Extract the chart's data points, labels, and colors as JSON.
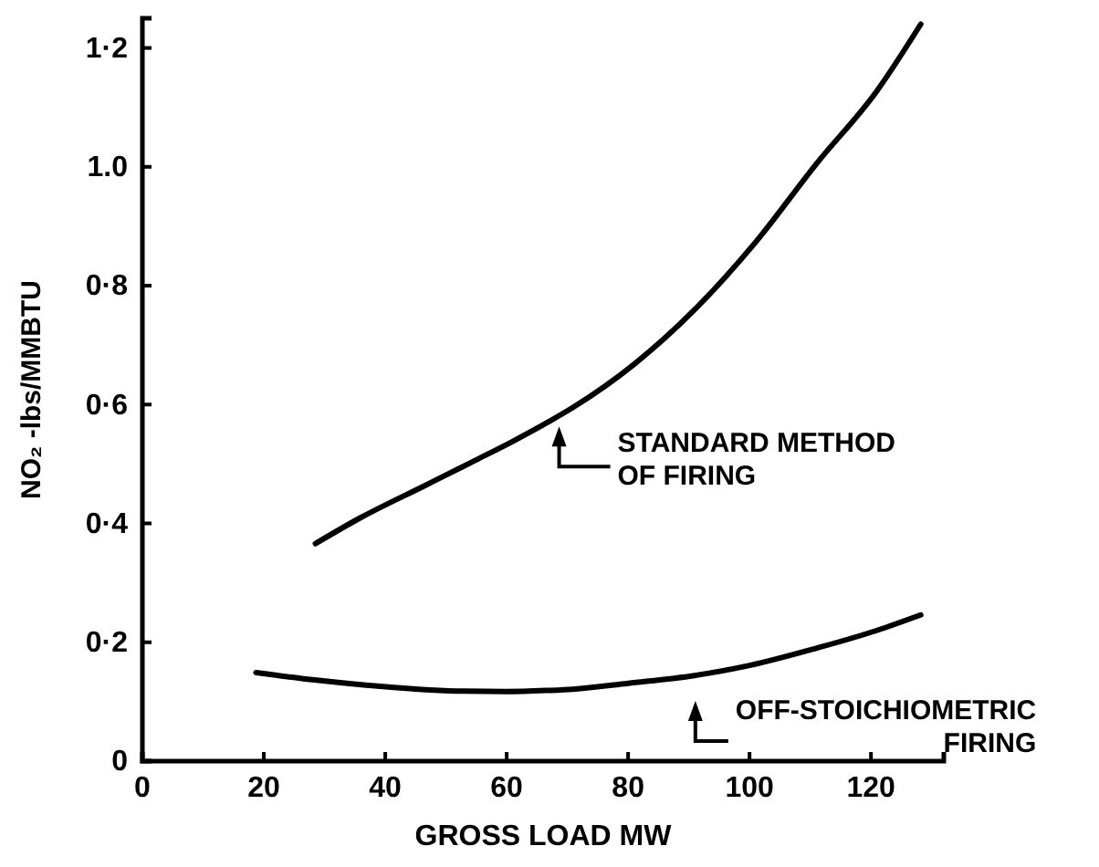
{
  "chart_data": {
    "type": "line",
    "xlabel": "GROSS LOAD MW",
    "ylabel": "NO₂ -lbs/MMBTU",
    "xlim": [
      0,
      132
    ],
    "ylim": [
      0,
      1.25
    ],
    "xticks": [
      0,
      20,
      40,
      60,
      80,
      100,
      120
    ],
    "yticks": [
      0,
      {
        "value": 0.2,
        "label": "0·2"
      },
      {
        "value": 0.4,
        "label": "0·4"
      },
      {
        "value": 0.6,
        "label": "0·6"
      },
      {
        "value": 0.8,
        "label": "0·8"
      },
      {
        "value": 1.0,
        "label": "1.0"
      },
      {
        "value": 1.2,
        "label": "1·2"
      }
    ],
    "grid": false,
    "legend": "right",
    "marker": "none",
    "line_style": "solid",
    "series": [
      {
        "name": "STANDARD METHOD\nOF FIRING",
        "color": "#000000",
        "x": [
          28.5,
          36,
          46.8,
          55,
          60.8,
          66.9,
          70.9,
          80.9,
          90.9,
          100.9,
          111,
          121,
          128.2
        ],
        "values": [
          0.366,
          0.41,
          0.465,
          0.507,
          0.537,
          0.571,
          0.595,
          0.667,
          0.759,
          0.872,
          1.005,
          1.128,
          1.24
        ]
      },
      {
        "name": "OFF-STOICHIOMETRIC\nFIRING",
        "color": "#000000",
        "x": [
          18.7,
          28,
          36.8,
          51.8,
          60,
          66.9,
          70.9,
          80,
          90.9,
          100,
          111,
          121,
          128.2
        ],
        "values": [
          0.149,
          0.137,
          0.128,
          0.118,
          0.117,
          0.119,
          0.121,
          0.131,
          0.144,
          0.161,
          0.19,
          0.22,
          0.246
        ]
      }
    ]
  }
}
